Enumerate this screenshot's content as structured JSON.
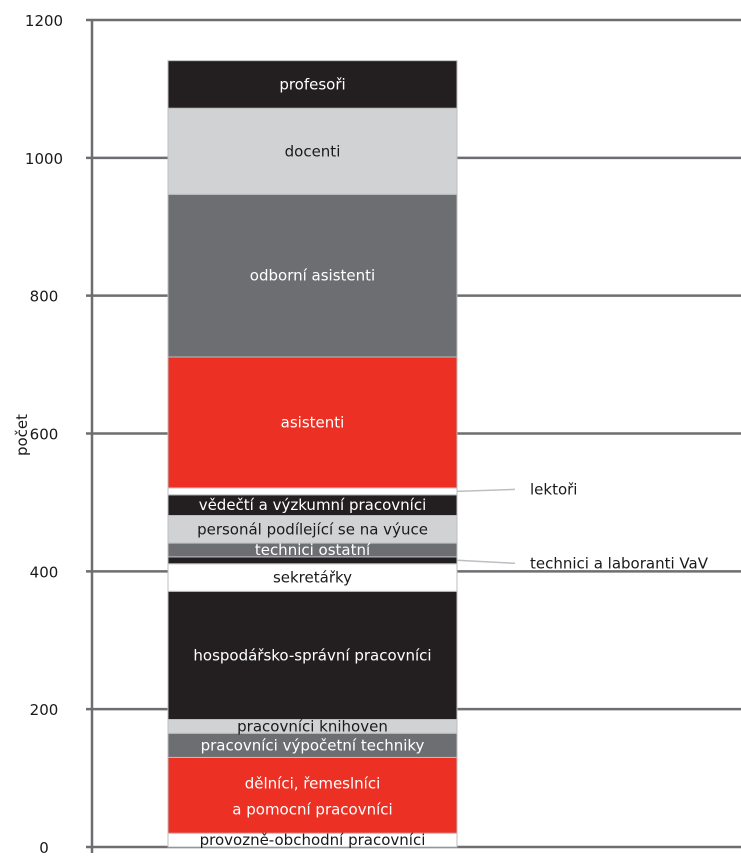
{
  "chart_data": {
    "type": "bar",
    "stacked": true,
    "ylabel": "počet",
    "xlabel": "",
    "ylim": [
      0,
      1200
    ],
    "yticks": [
      0,
      200,
      400,
      600,
      800,
      1000,
      1200
    ],
    "grid": true,
    "segments": [
      {
        "name": "provozně-obchodní pracovníci",
        "value": 20,
        "color": "#ffffff",
        "text_color": "#1a1a1a"
      },
      {
        "name": "dělníci, řemeslníci a pomocní pracovníci",
        "lines": [
          "dělníci, řemeslníci",
          "a pomocní pracovníci"
        ],
        "value": 110,
        "color": "#ec3024",
        "text_color": "#ffffff"
      },
      {
        "name": "pracovníci výpočetní techniky",
        "value": 35,
        "color": "#6d6e71",
        "text_color": "#ffffff"
      },
      {
        "name": "pracovníci knihoven",
        "value": 20,
        "color": "#d1d2d3",
        "text_color": "#1a1a1a"
      },
      {
        "name": "hospodářsko-správní pracovníci",
        "value": 186,
        "color": "#231f20",
        "text_color": "#ffffff"
      },
      {
        "name": "sekretářky",
        "value": 40,
        "color": "#ffffff",
        "text_color": "#1a1a1a"
      },
      {
        "name": "technici a laboranti VaV",
        "value": 10,
        "color": "#231f20",
        "text_color": "#ffffff",
        "external": true
      },
      {
        "name": "technici ostatní",
        "value": 20,
        "color": "#6d6e71",
        "text_color": "#ffffff"
      },
      {
        "name": "personál podílející se na výuce",
        "value": 40,
        "color": "#d1d2d3",
        "text_color": "#1a1a1a"
      },
      {
        "name": "vědečtí a výzkumní pracovníci",
        "value": 30,
        "color": "#231f20",
        "text_color": "#ffffff"
      },
      {
        "name": "lektoři",
        "value": 10,
        "color": "#ffffff",
        "text_color": "#1a1a1a",
        "external": true
      },
      {
        "name": "asistenti",
        "value": 190,
        "color": "#ec3024",
        "text_color": "#ffffff"
      },
      {
        "name": "odborní asistenti",
        "value": 236,
        "color": "#6d6e71",
        "text_color": "#ffffff"
      },
      {
        "name": "docenti",
        "value": 125,
        "color": "#d1d2d3",
        "text_color": "#1a1a1a"
      },
      {
        "name": "profesoři",
        "value": 69,
        "color": "#231f20",
        "text_color": "#ffffff"
      }
    ]
  }
}
